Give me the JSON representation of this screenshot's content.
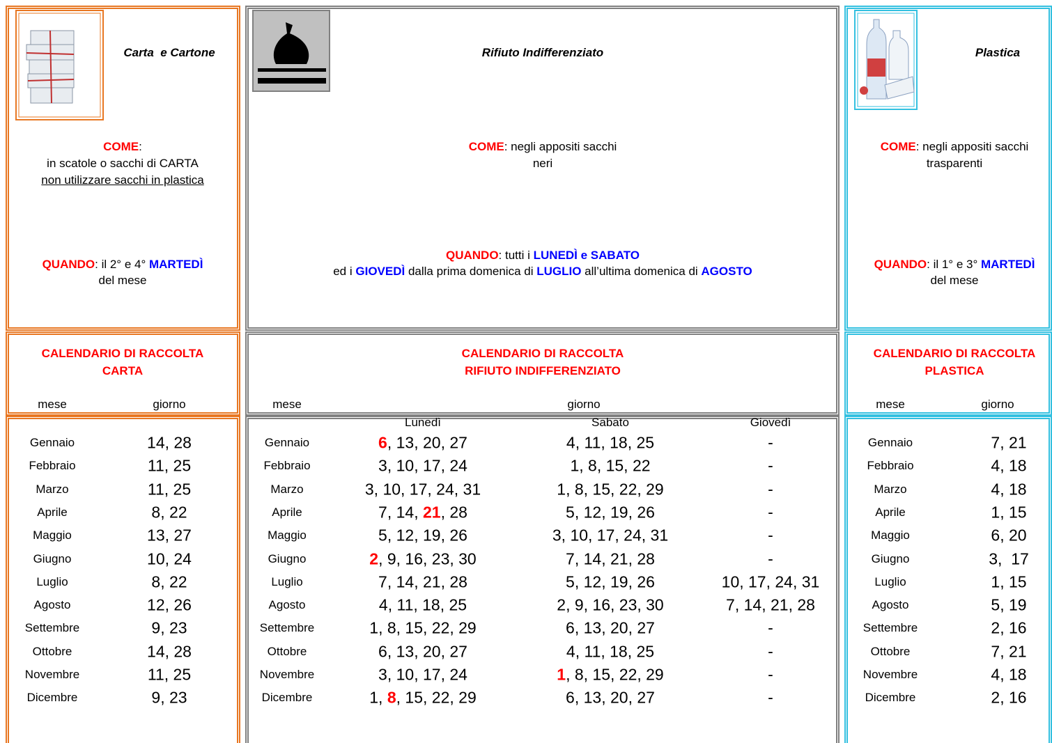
{
  "sections": [
    {
      "title": "Carta  e Cartone",
      "come": [
        [
          {
            "text": "COME",
            "style": "red"
          },
          {
            "text": ":"
          }
        ],
        [
          {
            "text": "in scatole o sacchi di CARTA"
          }
        ],
        [
          {
            "text": "non utilizzare sacchi in plastica",
            "style": "underline"
          }
        ]
      ],
      "quando": [
        [
          {
            "text": "QUANDO",
            "style": "red"
          },
          {
            "text": ": il 2° e 4° "
          },
          {
            "text": "MARTEDÌ",
            "style": "blue"
          }
        ],
        [
          {
            "text": "del mese"
          }
        ]
      ],
      "calendar_title": [
        "CALENDARIO DI RACCOLTA",
        "CARTA"
      ],
      "headers": [
        "mese",
        "giorno"
      ],
      "rows": [
        [
          "Gennaio",
          "14, 28"
        ],
        [
          "Febbraio",
          "11, 25"
        ],
        [
          "Marzo",
          "11, 25"
        ],
        [
          "Aprile",
          "8, 22"
        ],
        [
          "Maggio",
          "13, 27"
        ],
        [
          "Giugno",
          "10, 24"
        ],
        [
          "Luglio",
          "8, 22"
        ],
        [
          "Agosto",
          "12, 26"
        ],
        [
          "Settembre",
          "9, 23"
        ],
        [
          "Ottobre",
          "14, 28"
        ],
        [
          "Novembre",
          "11, 25"
        ],
        [
          "Dicembre",
          "9, 23"
        ]
      ]
    },
    {
      "title": "Rifiuto Indifferenziato",
      "come": [
        [
          {
            "text": "COME",
            "style": "red"
          },
          {
            "text": ": negli appositi sacchi"
          }
        ],
        [
          {
            "text": "neri"
          }
        ]
      ],
      "quando": [
        [
          {
            "text": "QUANDO",
            "style": "red"
          },
          {
            "text": ": tutti i "
          },
          {
            "text": "LUNEDÌ e SABATO",
            "style": "blue"
          }
        ],
        [
          {
            "text": "ed i "
          },
          {
            "text": "GIOVEDÌ",
            "style": "blue"
          },
          {
            "text": " dalla prima domenica di "
          },
          {
            "text": "LUGLIO",
            "style": "blue"
          },
          {
            "text": " all’ultima domenica di "
          },
          {
            "text": "AGOSTO",
            "style": "blue"
          }
        ]
      ],
      "calendar_title": [
        "CALENDARIO DI RACCOLTA",
        "RIFIUTO INDIFFERENZIATO"
      ],
      "headers": [
        "mese",
        "giorno"
      ],
      "subheaders": [
        "Lunedì",
        "Sabato",
        "Giovedì"
      ],
      "rows": [
        [
          "Gennaio",
          [
            {
              "text": "6",
              "style": "red"
            },
            {
              "text": ", 13, 20, 27"
            }
          ],
          "4, 11, 18, 25",
          "-"
        ],
        [
          "Febbraio",
          "3, 10, 17, 24",
          "1, 8, 15, 22",
          "-"
        ],
        [
          "Marzo",
          "3, 10, 17, 24, 31",
          "1, 8, 15, 22, 29",
          "-"
        ],
        [
          "Aprile",
          [
            {
              "text": "7, 14, "
            },
            {
              "text": "21",
              "style": "red"
            },
            {
              "text": ", 28"
            }
          ],
          "5, 12, 19, 26",
          "-"
        ],
        [
          "Maggio",
          "5, 12, 19, 26",
          "3, 10, 17, 24, 31",
          "-"
        ],
        [
          "Giugno",
          [
            {
              "text": "2",
              "style": "red"
            },
            {
              "text": ", 9, 16, 23, 30"
            }
          ],
          "7, 14, 21, 28",
          "-"
        ],
        [
          "Luglio",
          "7, 14, 21, 28",
          "5, 12, 19, 26",
          "10, 17, 24, 31"
        ],
        [
          "Agosto",
          "4, 11, 18, 25",
          "2, 9, 16, 23, 30",
          "7, 14, 21, 28"
        ],
        [
          "Settembre",
          "1, 8, 15, 22, 29",
          "6, 13, 20, 27",
          "-"
        ],
        [
          "Ottobre",
          "6, 13, 20, 27",
          "4, 11, 18, 25",
          "-"
        ],
        [
          "Novembre",
          "3, 10, 17, 24",
          [
            {
              "text": "1",
              "style": "red"
            },
            {
              "text": ", 8, 15, 22, 29"
            }
          ],
          "-"
        ],
        [
          "Dicembre",
          [
            {
              "text": "1, "
            },
            {
              "text": "8",
              "style": "red"
            },
            {
              "text": ", 15, 22, 29"
            }
          ],
          "6, 13, 20, 27",
          "-"
        ]
      ]
    },
    {
      "title": "Plastica",
      "come": [
        [
          {
            "text": "COME",
            "style": "red"
          },
          {
            "text": ": negli appositi sacchi"
          }
        ],
        [
          {
            "text": "trasparenti"
          }
        ]
      ],
      "quando": [
        [
          {
            "text": "QUANDO",
            "style": "red"
          },
          {
            "text": ": il 1° e 3° "
          },
          {
            "text": "MARTEDÌ",
            "style": "blue"
          }
        ],
        [
          {
            "text": "del mese"
          }
        ]
      ],
      "calendar_title": [
        "CALENDARIO DI RACCOLTA",
        "PLASTICA"
      ],
      "headers": [
        "mese",
        "giorno"
      ],
      "rows": [
        [
          "Gennaio",
          "7, 21"
        ],
        [
          "Febbraio",
          "4, 18"
        ],
        [
          "Marzo",
          "4, 18"
        ],
        [
          "Aprile",
          "1, 15"
        ],
        [
          "Maggio",
          "6, 20"
        ],
        [
          "Giugno",
          "3,  17"
        ],
        [
          "Luglio",
          "1, 15"
        ],
        [
          "Agosto",
          "5, 19"
        ],
        [
          "Settembre",
          "2, 16"
        ],
        [
          "Ottobre",
          "7, 21"
        ],
        [
          "Novembre",
          "4, 18"
        ],
        [
          "Dicembre",
          "2, 16"
        ]
      ]
    }
  ]
}
